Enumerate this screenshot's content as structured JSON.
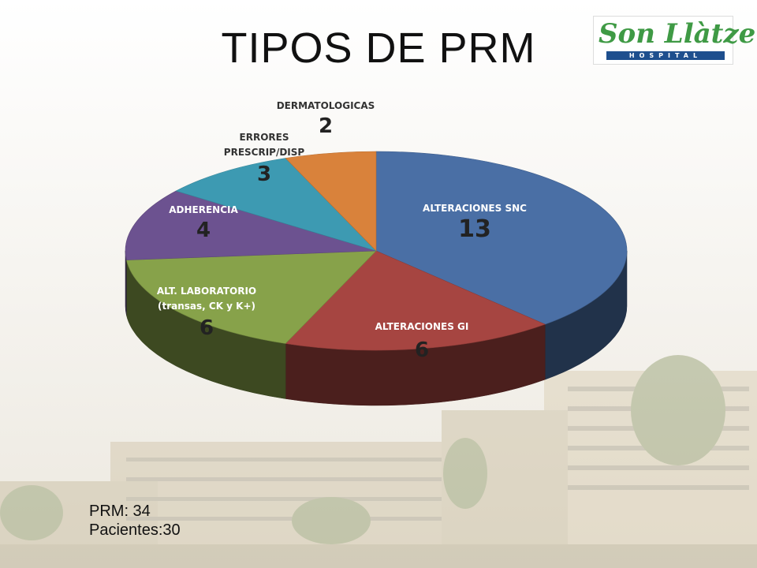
{
  "slide": {
    "title": "TIPOS DE PRM",
    "logo": {
      "name": "Son Llàtzer",
      "subtitle": "HOSPITAL"
    },
    "notes": {
      "prm": "PRM: 34",
      "pacientes": "Pacientes:30"
    }
  },
  "colors": {
    "alteraciones_snc": "#4a6fa5",
    "alteraciones_gi": "#a64541",
    "alt_laboratorio": "#87a24a",
    "adherencia": "#6c5290",
    "errores": "#3d9ab2",
    "dermatologicas": "#d9823b"
  },
  "chart_data": {
    "type": "pie",
    "style": "3d",
    "title": "TIPOS DE PRM",
    "slices": [
      {
        "label": "ALTERACIONES SNC",
        "label_lines": [
          "ALTERACIONES SNC"
        ],
        "value": 13,
        "color": "#4a6fa5",
        "label_color": "white"
      },
      {
        "label": "ALTERACIONES GI",
        "label_lines": [
          "ALTERACIONES GI"
        ],
        "value": 6,
        "color": "#a64541",
        "label_color": "white"
      },
      {
        "label": "ALT. LABORATORIO (transas, CK y K+)",
        "label_lines": [
          "ALT. LABORATORIO",
          "(transas, CK y K+)"
        ],
        "value": 6,
        "color": "#87a24a",
        "label_color": "white"
      },
      {
        "label": "ADHERENCIA",
        "label_lines": [
          "ADHERENCIA"
        ],
        "value": 4,
        "color": "#6c5290",
        "label_color": "white"
      },
      {
        "label": "ERRORES PRESCRIP/DISP",
        "label_lines": [
          "ERRORES",
          "PRESCRIP/DISP"
        ],
        "value": 3,
        "color": "#3d9ab2",
        "label_color": "dark"
      },
      {
        "label": "DERMATOLOGICAS",
        "label_lines": [
          "DERMATOLOGICAS"
        ],
        "value": 2,
        "color": "#d9823b",
        "label_color": "dark"
      }
    ]
  }
}
